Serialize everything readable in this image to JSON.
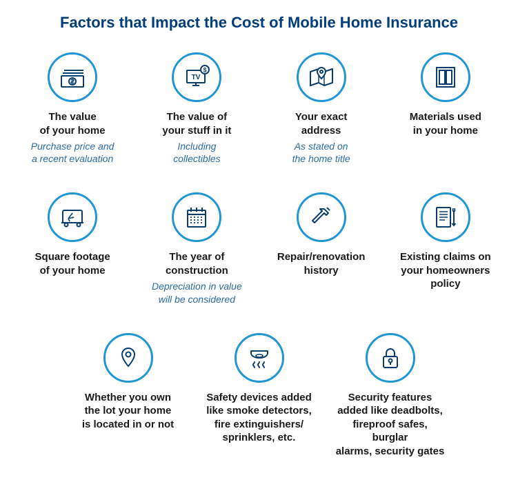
{
  "heading": "Factors that Impact the Cost of Mobile Home Insurance",
  "colors": {
    "heading": "#003d7a",
    "circle_border": "#2196d4",
    "circle_border_width": 3,
    "icon_stroke": "#0a3d6b",
    "title": "#1a1a1a",
    "subtitle": "#2b6ca3",
    "background": "#ffffff"
  },
  "layout": {
    "rows": [
      {
        "items": [
          0,
          1,
          2,
          3
        ]
      },
      {
        "items": [
          4,
          5,
          6,
          7
        ]
      },
      {
        "items": [
          8,
          9,
          10
        ]
      }
    ]
  },
  "items": [
    {
      "icon": "money-stack",
      "title": "The value\nof your home",
      "subtitle": "Purchase price and\na recent evaluation"
    },
    {
      "icon": "tv-dollar",
      "title": "The value of\nyour stuff in it",
      "subtitle": "Including\ncollectibles"
    },
    {
      "icon": "map-pin",
      "title": "Your exact\naddress",
      "subtitle": "As stated on\nthe home title"
    },
    {
      "icon": "window",
      "title": "Materials used\nin your home",
      "subtitle": ""
    },
    {
      "icon": "trailer",
      "title": "Square footage\nof your home",
      "subtitle": ""
    },
    {
      "icon": "calendar",
      "title": "The year of\nconstruction",
      "subtitle": "Depreciation in value\nwill be considered"
    },
    {
      "icon": "hammer",
      "title": "Repair/renovation\nhistory",
      "subtitle": ""
    },
    {
      "icon": "document-pen",
      "title": "Existing claims on\nyour homeowners\npolicy",
      "subtitle": ""
    },
    {
      "icon": "location-pin",
      "title": "Whether you own\nthe lot your home\nis located in or not",
      "subtitle": ""
    },
    {
      "icon": "smoke-detector",
      "title": "Safety devices added\nlike smoke detectors,\nfire extinguishers/\nsprinklers, etc.",
      "subtitle": ""
    },
    {
      "icon": "lock",
      "title": "Security features\nadded like deadbolts,\nfireproof safes, burglar\nalarms, security gates",
      "subtitle": ""
    }
  ]
}
